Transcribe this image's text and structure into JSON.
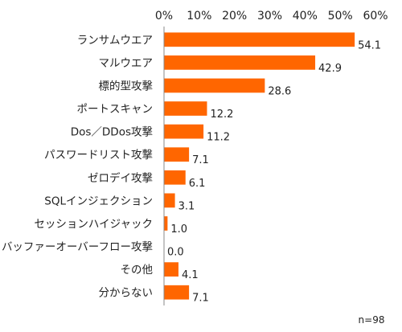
{
  "chart_data": {
    "type": "bar",
    "orientation": "horizontal",
    "categories": [
      "ランサムウエア",
      "マルウエア",
      "標的型攻撃",
      "ポートスキャン",
      "Dos／DDos攻撃",
      "パスワードリスト攻撃",
      "ゼロデイ攻撃",
      "SQLインジェクション",
      "セッションハイジャック",
      "バッファーオーバーフロー攻撃",
      "その他",
      "分からない"
    ],
    "values": [
      54.1,
      42.9,
      28.6,
      12.2,
      11.2,
      7.1,
      6.1,
      3.1,
      1.0,
      0.0,
      4.1,
      7.1
    ],
    "value_labels": [
      "54.1",
      "42.9",
      "28.6",
      "12.2",
      "11.2",
      "7.1",
      "6.1",
      "3.1",
      "1.0",
      "0.0",
      "4.1",
      "7.1"
    ],
    "xticks": [
      "0%",
      "10%",
      "20%",
      "30%",
      "40%",
      "50%",
      "60%"
    ],
    "xlim": [
      0,
      60
    ],
    "xaxis_position": "top",
    "bar_color": "#ff6600",
    "grid": false,
    "note": "n=98"
  }
}
